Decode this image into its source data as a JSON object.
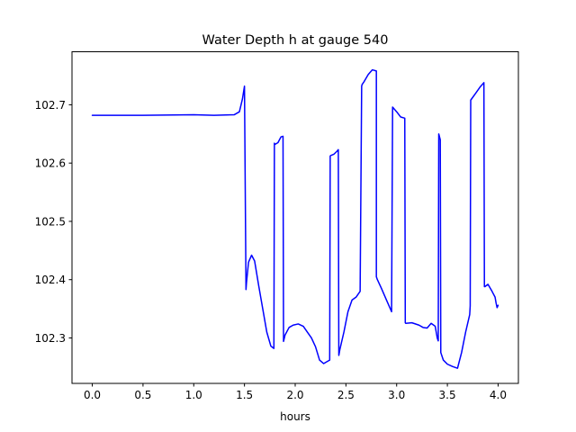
{
  "chart_data": {
    "type": "line",
    "title": "Water Depth h at gauge 540",
    "xlabel": "hours",
    "ylabel": "",
    "xlim": [
      -0.2,
      4.2
    ],
    "ylim": [
      102.222,
      102.791
    ],
    "xticks": [
      0.0,
      0.5,
      1.0,
      1.5,
      2.0,
      2.5,
      3.0,
      3.5,
      4.0
    ],
    "xtick_labels": [
      "0.0",
      "0.5",
      "1.0",
      "1.5",
      "2.0",
      "2.5",
      "3.0",
      "3.5",
      "4.0"
    ],
    "yticks": [
      102.3,
      102.4,
      102.5,
      102.6,
      102.7
    ],
    "ytick_labels": [
      "102.3",
      "102.4",
      "102.5",
      "102.6",
      "102.7"
    ],
    "grid": false,
    "legend": "none",
    "series": [
      {
        "color": "#0000ff",
        "x": [
          0.0,
          0.5,
          1.0,
          1.2,
          1.4,
          1.45,
          1.48,
          1.5,
          1.515,
          1.52,
          1.54,
          1.57,
          1.6,
          1.64,
          1.68,
          1.72,
          1.76,
          1.79,
          1.795,
          1.8,
          1.83,
          1.86,
          1.88,
          1.885,
          1.9,
          1.94,
          1.98,
          2.03,
          2.08,
          2.12,
          2.16,
          2.2,
          2.24,
          2.28,
          2.32,
          2.34,
          2.345,
          2.35,
          2.38,
          2.41,
          2.425,
          2.43,
          2.44,
          2.48,
          2.52,
          2.56,
          2.6,
          2.64,
          2.655,
          2.66,
          2.68,
          2.72,
          2.76,
          2.8,
          2.8,
          2.81,
          2.85,
          2.9,
          2.95,
          2.96,
          3.0,
          3.04,
          3.08,
          3.085,
          3.09,
          3.15,
          3.22,
          3.26,
          3.3,
          3.34,
          3.38,
          3.4,
          3.41,
          3.415,
          3.43,
          3.435,
          3.46,
          3.5,
          3.55,
          3.6,
          3.64,
          3.68,
          3.72,
          3.725,
          3.73,
          3.78,
          3.82,
          3.86,
          3.865,
          3.87,
          3.9,
          3.94,
          3.97,
          3.98,
          3.99,
          4.0
        ],
        "y": [
          102.682,
          102.682,
          102.683,
          102.682,
          102.683,
          102.688,
          102.71,
          102.732,
          102.383,
          102.395,
          102.43,
          102.442,
          102.432,
          102.39,
          102.35,
          102.31,
          102.286,
          102.282,
          102.634,
          102.632,
          102.635,
          102.645,
          102.646,
          102.294,
          102.305,
          102.318,
          102.322,
          102.324,
          102.32,
          102.31,
          102.3,
          102.285,
          102.262,
          102.256,
          102.26,
          102.262,
          102.612,
          102.613,
          102.615,
          102.62,
          102.623,
          102.27,
          102.28,
          102.31,
          102.345,
          102.365,
          102.37,
          102.38,
          102.732,
          102.735,
          102.74,
          102.752,
          102.76,
          102.758,
          102.405,
          102.4,
          102.385,
          102.365,
          102.345,
          102.696,
          102.688,
          102.679,
          102.677,
          102.326,
          102.325,
          102.326,
          102.322,
          102.318,
          102.317,
          102.325,
          102.32,
          102.3,
          102.295,
          102.65,
          102.64,
          102.275,
          102.262,
          102.255,
          102.251,
          102.248,
          102.275,
          102.31,
          102.34,
          102.355,
          102.708,
          102.72,
          102.73,
          102.738,
          102.388,
          102.388,
          102.392,
          102.38,
          102.37,
          102.36,
          102.352,
          102.356
        ]
      }
    ]
  }
}
